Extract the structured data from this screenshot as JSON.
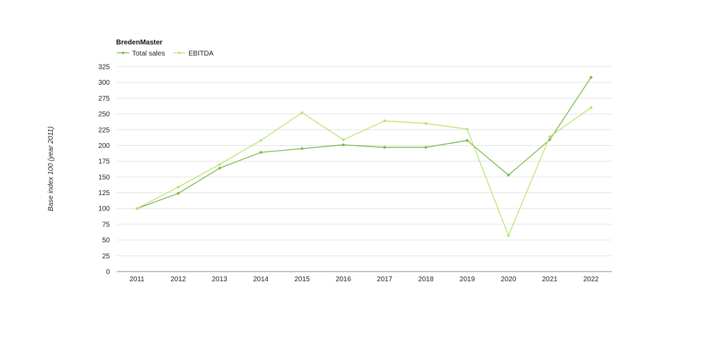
{
  "chart_data": {
    "type": "line",
    "title": "BredenMaster",
    "xlabel": "",
    "ylabel": "Base index 100 (year 2011)",
    "ylim": [
      0,
      325
    ],
    "yticks": [
      0,
      25,
      50,
      75,
      100,
      125,
      150,
      175,
      200,
      225,
      250,
      275,
      300,
      325
    ],
    "categories": [
      "2011",
      "2012",
      "2013",
      "2014",
      "2015",
      "2016",
      "2017",
      "2018",
      "2019",
      "2020",
      "2021",
      "2022"
    ],
    "grid": true,
    "legend_position": "top-left",
    "series": [
      {
        "name": "Total sales",
        "color": "#7ab648",
        "values": [
          100,
          124,
          164,
          189,
          195,
          201,
          197,
          197,
          208,
          153,
          209,
          308
        ]
      },
      {
        "name": "EBITDA",
        "color": "#b8e46c",
        "values": [
          100,
          134,
          170,
          208,
          252,
          209,
          239,
          235,
          226,
          57,
          214,
          260
        ]
      }
    ]
  }
}
